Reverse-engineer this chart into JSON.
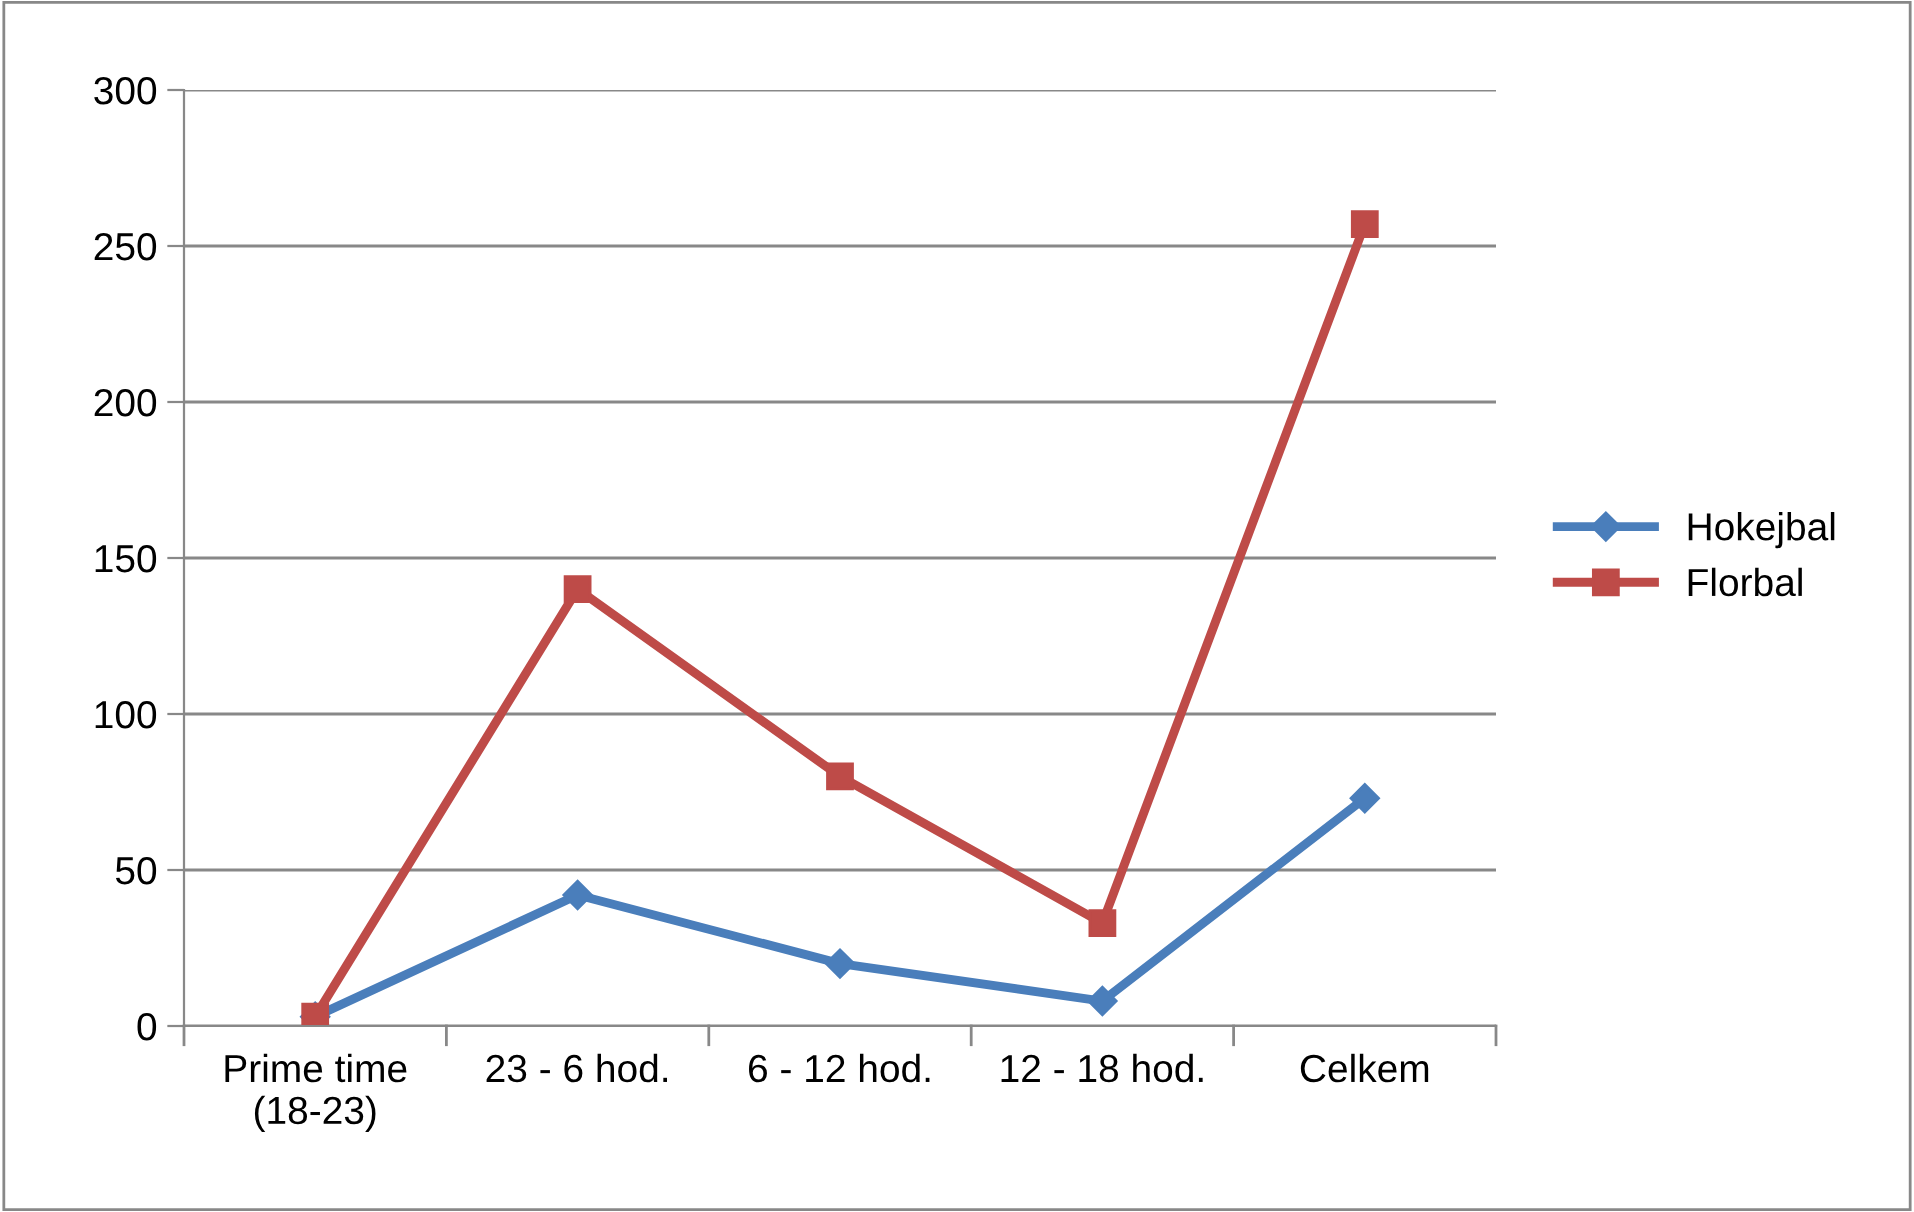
{
  "chart_data": {
    "type": "line",
    "categories": [
      "Prime time\n(18-23)",
      "23 - 6 hod.",
      "6 - 12 hod.",
      "12 - 18 hod.",
      "Celkem"
    ],
    "series": [
      {
        "name": "Hokejbal",
        "color": "#4a7ebb",
        "marker": "diamond",
        "values": [
          3,
          42,
          20,
          8,
          73
        ]
      },
      {
        "name": "Florbal",
        "color": "#be4b48",
        "marker": "square",
        "values": [
          3,
          140,
          80,
          33,
          257
        ]
      }
    ],
    "ylim": [
      0,
      300
    ],
    "yticks": [
      0,
      50,
      100,
      150,
      200,
      250,
      300
    ],
    "grid": "y",
    "legend": "right",
    "line_style": "solid"
  }
}
